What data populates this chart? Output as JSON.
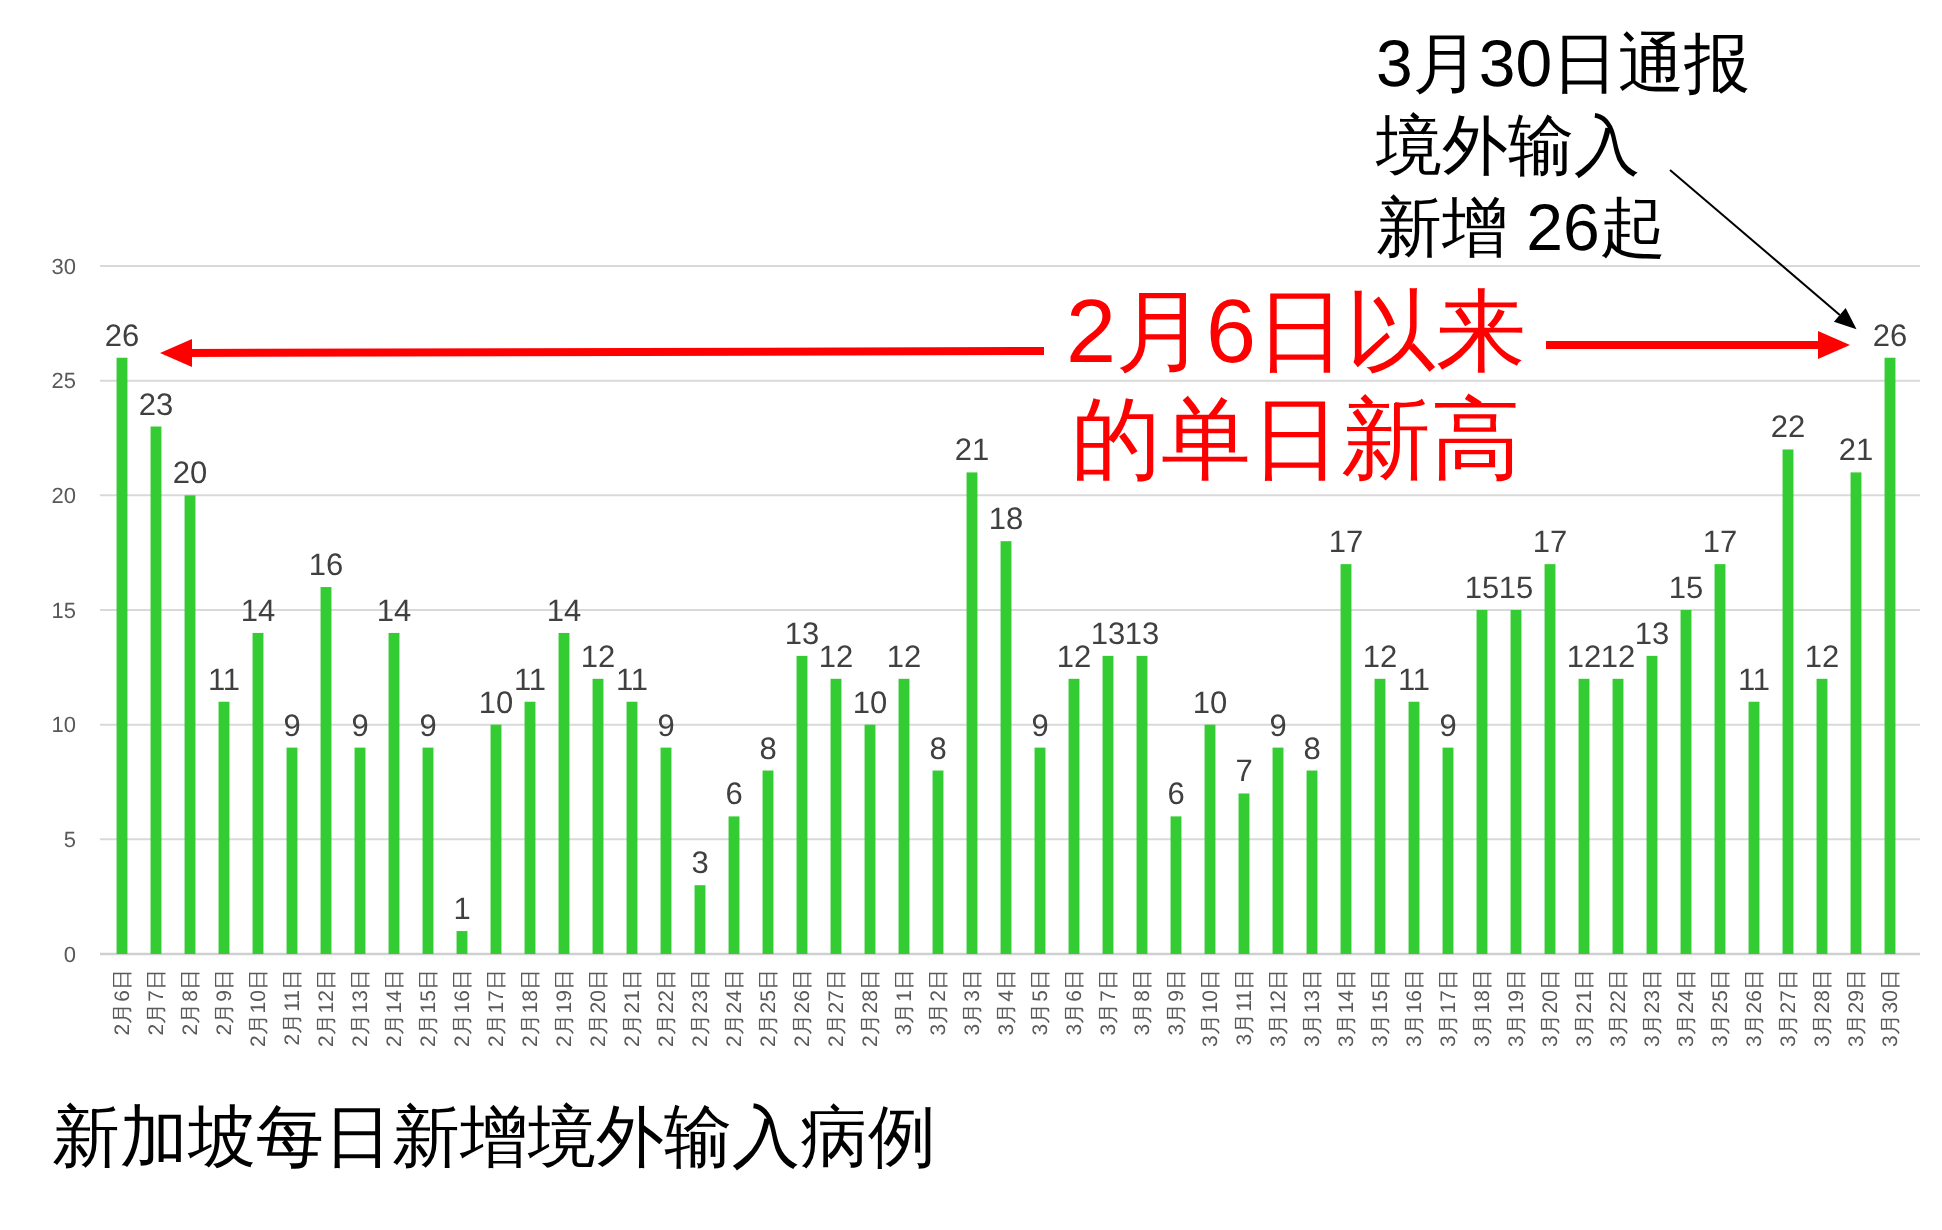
{
  "chart_data": {
    "type": "bar",
    "title": "新加坡每日新增境外输入病例",
    "categories": [
      "2月6日",
      "2月7日",
      "2月8日",
      "2月9日",
      "2月10日",
      "2月11日",
      "2月12日",
      "2月13日",
      "2月14日",
      "2月15日",
      "2月16日",
      "2月17日",
      "2月18日",
      "2月19日",
      "2月20日",
      "2月21日",
      "2月22日",
      "2月23日",
      "2月24日",
      "2月25日",
      "2月26日",
      "2月27日",
      "2月28日",
      "3月1日",
      "3月2日",
      "3月3日",
      "3月4日",
      "3月5日",
      "3月6日",
      "3月7日",
      "3月8日",
      "3月9日",
      "3月10日",
      "3月11日",
      "3月12日",
      "3月13日",
      "3月14日",
      "3月15日",
      "3月16日",
      "3月17日",
      "3月18日",
      "3月19日",
      "3月20日",
      "3月21日",
      "3月22日",
      "3月23日",
      "3月24日",
      "3月25日",
      "3月26日",
      "3月27日",
      "3月28日",
      "3月29日",
      "3月30日"
    ],
    "values": [
      26,
      23,
      20,
      11,
      14,
      9,
      16,
      9,
      14,
      9,
      1,
      10,
      11,
      14,
      12,
      11,
      9,
      3,
      6,
      8,
      13,
      12,
      10,
      12,
      8,
      21,
      18,
      9,
      12,
      13,
      13,
      6,
      10,
      7,
      9,
      8,
      17,
      12,
      11,
      9,
      15,
      15,
      17,
      12,
      12,
      13,
      15,
      17,
      11,
      22,
      12,
      21,
      26
    ],
    "color": "#33cc33",
    "ylim": [
      0,
      30
    ],
    "yticks": [
      0,
      5,
      10,
      15,
      20,
      25,
      30
    ],
    "grid": "y",
    "data_labels": true,
    "annotations": [
      {
        "text": "3月30日通报境外输入新增 26起",
        "x": "3月30日",
        "y": 26
      },
      "2月6日以来的单日新高"
    ]
  }
}
